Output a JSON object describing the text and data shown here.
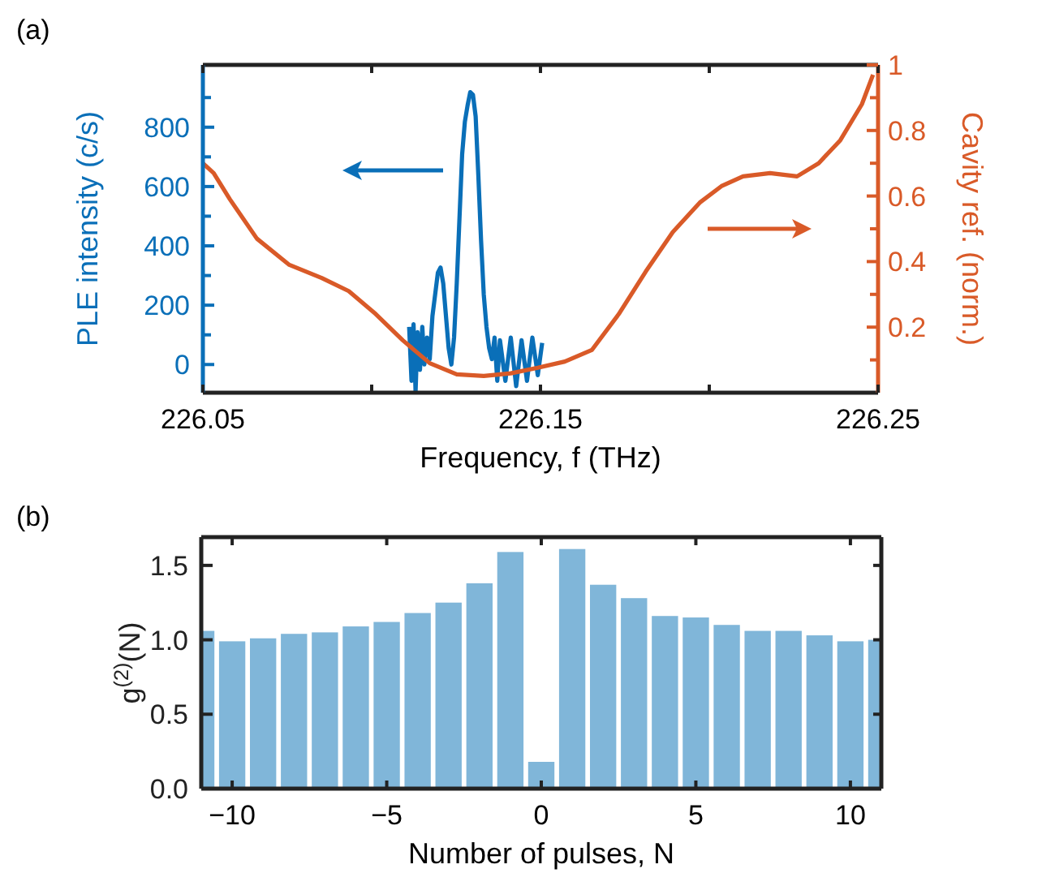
{
  "chart_data": [
    {
      "type": "line",
      "title": "(a)",
      "xlabel": "Frequency, f (THz)",
      "ylabel": "PLE intensity (c/s)",
      "y2label": "Cavity ref. (norm.)",
      "xlim": [
        226.05,
        226.25
      ],
      "xticks": [
        226.05,
        {
          "value": 226.1,
          "label": null
        },
        226.15,
        {
          "value": 226.2,
          "label": null
        },
        226.25
      ],
      "ylim": [
        -95,
        1010
      ],
      "yticks": [
        0,
        {
          "value": 100,
          "label": null
        },
        200,
        {
          "value": 300,
          "label": null
        },
        400,
        {
          "value": 500,
          "label": null
        },
        600,
        {
          "value": 700,
          "label": null
        },
        800,
        {
          "value": 900,
          "label": null
        }
      ],
      "y2lim": [
        0,
        1
      ],
      "y2ticks": [
        {
          "value": 0.1,
          "label": null
        },
        0.2,
        {
          "value": 0.3,
          "label": null
        },
        0.4,
        {
          "value": 0.5,
          "label": null
        },
        0.6,
        {
          "value": 0.7,
          "label": null
        },
        0.8,
        {
          "value": 0.9,
          "label": null
        },
        1
      ],
      "grid": false,
      "series": [
        {
          "color": "#0a6fb8",
          "x": [
            226.1111,
            226.1118,
            226.1124,
            226.113,
            226.1136,
            226.1143,
            226.115,
            226.1156,
            226.1164,
            226.1172,
            226.118,
            226.1188,
            226.1196,
            226.1204,
            226.1212,
            226.122,
            226.1228,
            226.1236,
            226.1244,
            226.1252,
            226.126,
            226.1268,
            226.1276,
            226.1284,
            226.1292,
            226.13,
            226.1308,
            226.1316,
            226.1324,
            226.1332,
            226.134,
            226.1348,
            226.1356,
            226.1364,
            226.1372,
            226.138,
            226.1396,
            226.1412,
            226.1428,
            226.1444,
            226.146,
            226.1476,
            226.1492,
            226.1505
          ],
          "values": [
            127,
            -55,
            136,
            -91,
            109,
            -18,
            127,
            0,
            91,
            18,
            164,
            236,
            309,
            327,
            273,
            164,
            55,
            0,
            91,
            273,
            491,
            709,
            818,
            873,
            918,
            909,
            836,
            636,
            418,
            236,
            127,
            55,
            18,
            91,
            -55,
            82,
            -55,
            91,
            -73,
            82,
            -55,
            91,
            -36,
            73
          ]
        },
        {
          "color": "#d95a28",
          "axis": "y2",
          "x": [
            226.05,
            226.0532,
            226.058,
            226.066,
            226.0756,
            226.0852,
            226.0932,
            226.1012,
            226.1092,
            226.1172,
            226.1252,
            226.1332,
            226.1412,
            226.1492,
            226.1572,
            226.1652,
            226.1732,
            226.1812,
            226.1892,
            226.1972,
            226.2036,
            226.21,
            226.218,
            226.226,
            226.2324,
            226.2388,
            226.2452,
            226.2485
          ],
          "values": [
            0.7,
            0.67,
            0.59,
            0.47,
            0.39,
            0.35,
            0.31,
            0.24,
            0.16,
            0.09,
            0.056,
            0.051,
            0.059,
            0.076,
            0.095,
            0.13,
            0.24,
            0.37,
            0.49,
            0.58,
            0.63,
            0.66,
            0.67,
            0.66,
            0.7,
            0.77,
            0.88,
            0.97
          ]
        }
      ]
    },
    {
      "type": "bar",
      "title": "(b)",
      "xlabel": "Number of pulses, N",
      "ylabel": "g$^{(2)}$(N)",
      "color": "#80b6d9",
      "x": [
        -11,
        -10,
        -9,
        -8,
        -7,
        -6,
        -5,
        -4,
        -3,
        -2,
        -1,
        0,
        1,
        2,
        3,
        4,
        5,
        6,
        7,
        8,
        9,
        10,
        11
      ],
      "values": [
        1.06,
        0.99,
        1.01,
        1.04,
        1.05,
        1.09,
        1.12,
        1.18,
        1.25,
        1.38,
        1.59,
        0.18,
        1.61,
        1.37,
        1.28,
        1.16,
        1.15,
        1.1,
        1.06,
        1.06,
        1.03,
        0.99,
        1.0
      ],
      "xlim": [
        -11,
        11
      ],
      "xticks": [
        {
          "value": -10,
          "label": "−10"
        },
        {
          "value": -5,
          "label": "−5"
        },
        0,
        5,
        10
      ],
      "ylim": [
        0,
        1.69
      ],
      "yticks": [
        {
          "value": 0,
          "label": "0.0"
        },
        0.5,
        {
          "value": 1,
          "label": "1.0"
        },
        1.5
      ],
      "grid": false
    }
  ]
}
